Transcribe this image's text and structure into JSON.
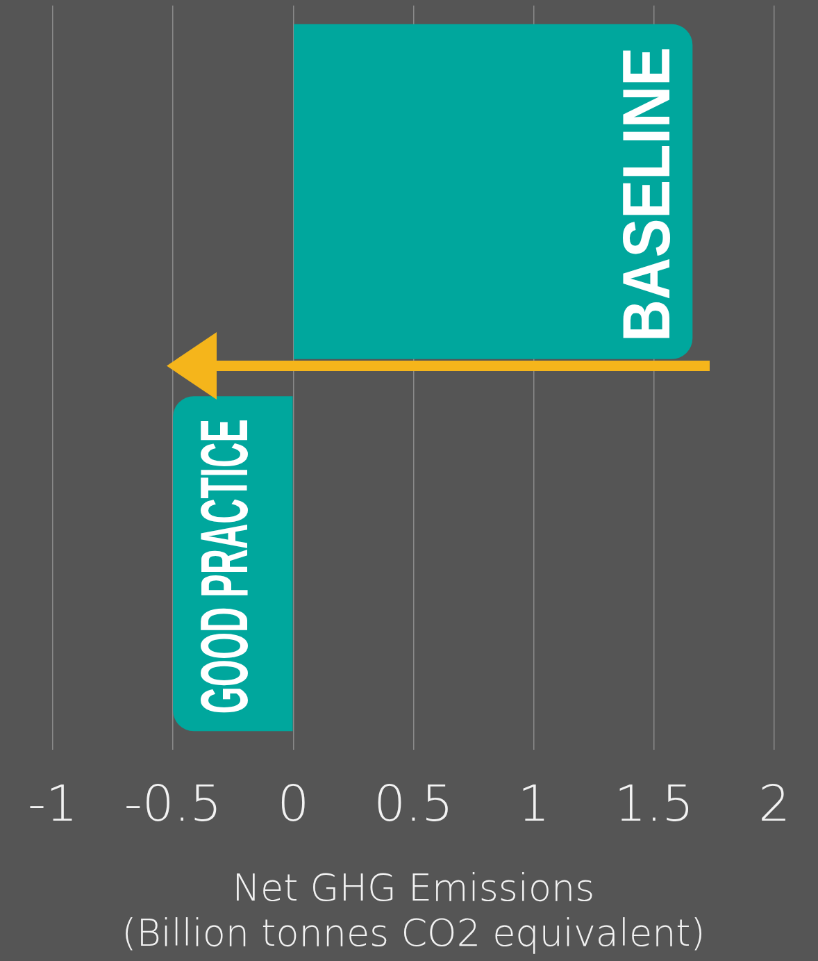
{
  "chart_data": {
    "type": "bar",
    "orientation": "horizontal",
    "categories": [
      "BASELINE",
      "GOOD PRACTICE"
    ],
    "values": [
      1.66,
      -0.5
    ],
    "color": "#00a79d",
    "xlim": [
      -1,
      2
    ],
    "xticks": [
      -1,
      -0.5,
      0,
      0.5,
      1,
      1.5,
      2
    ],
    "grid": "x",
    "xlabel": "Net GHG Emissions\n(Billion tonnes CO2 equivalent)"
  }
}
